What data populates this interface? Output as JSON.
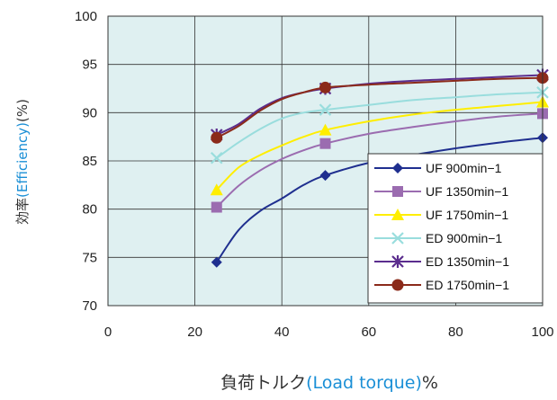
{
  "chart_data": {
    "type": "line",
    "xlabel_jp": "負荷トルク",
    "xlabel_en": "(Load torque)",
    "xlabel_unit": "%",
    "ylabel_jp": "効率",
    "ylabel_en": "(Efficiency)",
    "ylabel_unit": "(%)",
    "xlim": [
      0,
      100
    ],
    "ylim": [
      70,
      100
    ],
    "x_ticks": [
      "0",
      "20",
      "40",
      "60",
      "80",
      "100"
    ],
    "y_ticks": [
      "70",
      "75",
      "80",
      "85",
      "90",
      "95",
      "100"
    ],
    "grid": true,
    "legend_position": "bottom-right",
    "x": [
      25,
      50,
      100
    ],
    "series": [
      {
        "name": "UF   900min−1",
        "values": [
          74.5,
          83.5,
          87.4
        ],
        "color": "#1f2f8f",
        "marker": "diamond",
        "curve": [
          [
            25,
            74.5
          ],
          [
            30,
            77.8
          ],
          [
            35,
            79.8
          ],
          [
            40,
            81.1
          ],
          [
            45,
            82.5
          ],
          [
            50,
            83.5
          ],
          [
            60,
            84.8
          ],
          [
            70,
            85.6
          ],
          [
            80,
            86.3
          ],
          [
            90,
            86.9
          ],
          [
            100,
            87.4
          ]
        ]
      },
      {
        "name": "UF 1350min−1",
        "values": [
          80.2,
          86.8,
          89.9
        ],
        "color": "#9b6cb0",
        "marker": "square",
        "curve": [
          [
            25,
            80.2
          ],
          [
            30,
            82.4
          ],
          [
            35,
            84.0
          ],
          [
            40,
            85.2
          ],
          [
            45,
            86.1
          ],
          [
            50,
            86.8
          ],
          [
            60,
            87.8
          ],
          [
            70,
            88.5
          ],
          [
            80,
            89.1
          ],
          [
            90,
            89.6
          ],
          [
            100,
            89.9
          ]
        ]
      },
      {
        "name": "UF 1750min−1",
        "values": [
          82.0,
          88.2,
          91.1
        ],
        "color": "#ffee00",
        "marker": "triangle",
        "curve": [
          [
            25,
            82.0
          ],
          [
            30,
            84.3
          ],
          [
            35,
            85.6
          ],
          [
            40,
            86.6
          ],
          [
            45,
            87.5
          ],
          [
            50,
            88.2
          ],
          [
            60,
            89.1
          ],
          [
            70,
            89.8
          ],
          [
            80,
            90.3
          ],
          [
            90,
            90.7
          ],
          [
            100,
            91.1
          ]
        ]
      },
      {
        "name": "ED 900min−1",
        "values": [
          85.3,
          90.3,
          92.1
        ],
        "color": "#99dddd",
        "marker": "x",
        "curve": [
          [
            25,
            85.3
          ],
          [
            30,
            86.9
          ],
          [
            35,
            88.3
          ],
          [
            40,
            89.4
          ],
          [
            45,
            90.0
          ],
          [
            50,
            90.3
          ],
          [
            60,
            90.8
          ],
          [
            70,
            91.3
          ],
          [
            80,
            91.6
          ],
          [
            90,
            91.9
          ],
          [
            100,
            92.1
          ]
        ]
      },
      {
        "name": "ED 1350min−1",
        "values": [
          87.7,
          92.5,
          93.9
        ],
        "color": "#5b2d8e",
        "marker": "star",
        "curve": [
          [
            25,
            87.7
          ],
          [
            30,
            88.8
          ],
          [
            35,
            90.4
          ],
          [
            40,
            91.5
          ],
          [
            45,
            92.1
          ],
          [
            50,
            92.5
          ],
          [
            60,
            93.0
          ],
          [
            70,
            93.3
          ],
          [
            80,
            93.5
          ],
          [
            90,
            93.7
          ],
          [
            100,
            93.9
          ]
        ]
      },
      {
        "name": "ED 1750min−1",
        "values": [
          87.4,
          92.6,
          93.6
        ],
        "color": "#8b2a1a",
        "marker": "circle",
        "curve": [
          [
            25,
            87.4
          ],
          [
            30,
            88.6
          ],
          [
            35,
            90.2
          ],
          [
            40,
            91.4
          ],
          [
            45,
            92.1
          ],
          [
            50,
            92.6
          ],
          [
            60,
            92.9
          ],
          [
            70,
            93.1
          ],
          [
            80,
            93.3
          ],
          [
            90,
            93.5
          ],
          [
            100,
            93.6
          ]
        ]
      }
    ]
  }
}
